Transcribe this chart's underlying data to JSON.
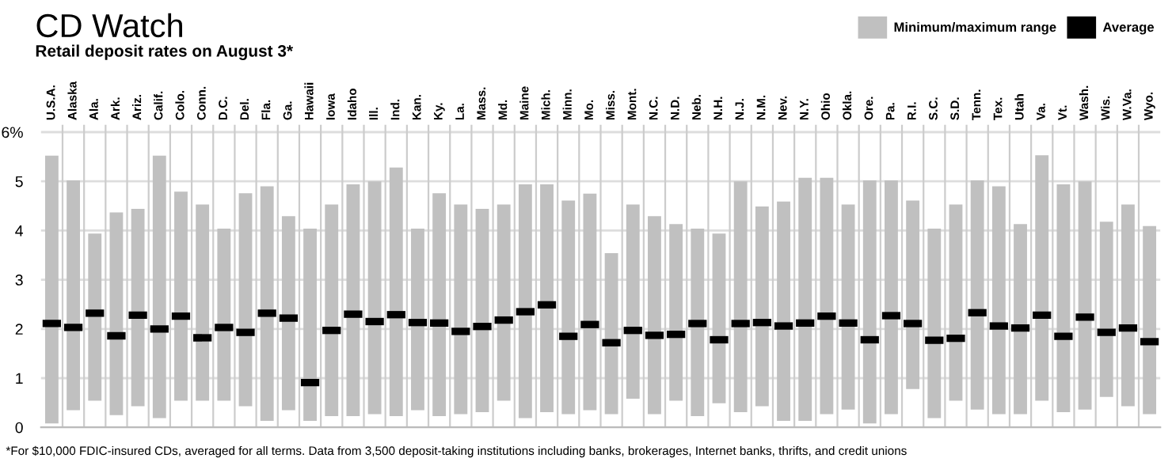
{
  "chart_data": {
    "type": "bar",
    "title": "CD Watch",
    "subtitle": "Retail deposit rates on August 3*",
    "categories": [
      "U.S.A.",
      "Alaska",
      "Ala.",
      "Ark.",
      "Ariz.",
      "Calif.",
      "Colo.",
      "Conn.",
      "D.C.",
      "Del.",
      "Fla.",
      "Ga.",
      "Hawaii",
      "Iowa",
      "Idaho",
      "Ill.",
      "Ind.",
      "Kan.",
      "Ky.",
      "La.",
      "Mass.",
      "Md.",
      "Maine",
      "Mich.",
      "Minn.",
      "Mo.",
      "Miss.",
      "Mont.",
      "N.C.",
      "N.D.",
      "Neb.",
      "N.H.",
      "N.J.",
      "N.M.",
      "Nev.",
      "N.Y.",
      "Ohio",
      "Okla.",
      "Ore.",
      "Pa.",
      "R.I.",
      "S.C.",
      "S.D.",
      "Tenn.",
      "Tex.",
      "Utah",
      "Va.",
      "Vt.",
      "Wash.",
      "Wis.",
      "W.Va.",
      "Wyo."
    ],
    "series": [
      {
        "name": "Minimum/maximum range",
        "type": "bar",
        "color": "#c0c0c0",
        "base": [
          0.08,
          0.35,
          0.54,
          0.25,
          0.43,
          0.19,
          0.54,
          0.54,
          0.54,
          0.43,
          0.13,
          0.35,
          0.13,
          0.23,
          0.23,
          0.27,
          0.23,
          0.35,
          0.23,
          0.27,
          0.31,
          0.54,
          0.19,
          0.31,
          0.27,
          0.35,
          0.27,
          0.58,
          0.27,
          0.54,
          0.23,
          0.49,
          0.31,
          0.43,
          0.13,
          0.13,
          0.27,
          0.36,
          0.08,
          0.27,
          0.78,
          0.19,
          0.54,
          0.36,
          0.27,
          0.27,
          0.54,
          0.31,
          0.36,
          0.62,
          0.43,
          0.27
        ],
        "values": [
          5.44,
          4.67,
          3.4,
          4.12,
          4.01,
          5.33,
          4.25,
          3.99,
          3.5,
          4.33,
          4.77,
          3.94,
          3.91,
          4.3,
          4.71,
          4.73,
          5.05,
          3.69,
          4.53,
          4.26,
          4.13,
          3.99,
          4.75,
          4.63,
          4.34,
          4.4,
          3.27,
          3.95,
          4.02,
          3.59,
          3.81,
          3.45,
          4.69,
          4.06,
          4.46,
          4.94,
          4.8,
          4.17,
          4.94,
          4.75,
          3.83,
          3.85,
          3.99,
          4.66,
          4.63,
          3.86,
          4.99,
          4.63,
          4.64,
          3.56,
          4.1,
          3.82
        ]
      },
      {
        "name": "Average",
        "type": "scatter",
        "color": "#000000",
        "values": [
          2.11,
          2.03,
          2.32,
          1.86,
          2.28,
          2.0,
          2.26,
          1.82,
          2.03,
          1.93,
          2.32,
          2.22,
          0.91,
          1.97,
          2.3,
          2.15,
          2.29,
          2.13,
          2.12,
          1.95,
          2.05,
          2.18,
          2.35,
          2.49,
          1.85,
          2.09,
          1.72,
          1.97,
          1.87,
          1.89,
          2.11,
          1.78,
          2.11,
          2.13,
          2.06,
          2.12,
          2.26,
          2.12,
          1.78,
          2.27,
          2.11,
          1.77,
          1.81,
          2.33,
          2.06,
          2.02,
          2.28,
          1.85,
          2.24,
          1.93,
          2.02,
          1.74
        ]
      }
    ],
    "ylim": [
      0,
      6.15
    ],
    "yticks": [
      0,
      1,
      2,
      3,
      4,
      5,
      {
        "value": 6,
        "label": "6%"
      }
    ],
    "grid": "y",
    "legend": "top right",
    "annotations": [
      "*For $10,000 FDIC-insured CDs, averaged for all terms. Data from 3,500 deposit-taking institutions including banks, brokerages, Internet banks, thrifts, and credit unions"
    ]
  }
}
